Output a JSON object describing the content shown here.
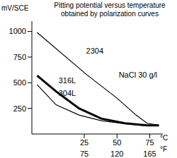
{
  "chart_data": {
    "type": "line",
    "title": "Pitting potential versus temperature",
    "subtitle": "obtained by polarization curves",
    "y_label": "mV/SCE",
    "x_label": "°C",
    "x2_label": "°F",
    "xlim": [
      -15,
      85
    ],
    "xticks": [
      25,
      50,
      75
    ],
    "x2ticks": [
      {
        "value": 25,
        "label": "75"
      },
      {
        "value": 50,
        "label": "120"
      },
      {
        "value": 75,
        "label": "165"
      }
    ],
    "ylim": [
      0,
      1100
    ],
    "yticks": [
      250,
      500,
      750,
      1000
    ],
    "grid": false,
    "annotations": [
      {
        "text": "NaCl 30 g/l",
        "x": 66,
        "y": 580
      }
    ],
    "series": [
      {
        "name": "2304",
        "color": "#000000",
        "line_style": "solid",
        "label_at": [
          33,
          810
        ],
        "x": [
          -11,
          26.7,
          50,
          64.5,
          73,
          82
        ],
        "values": [
          990,
          580,
          350,
          185,
          105,
          85
        ]
      },
      {
        "name": "316L",
        "color": "#000000",
        "line_style": "thick",
        "label_at": [
          12,
          520
        ],
        "x": [
          -11,
          3.5,
          21,
          38,
          56,
          73,
          82
        ],
        "values": [
          570,
          415,
          250,
          150,
          105,
          85,
          85
        ]
      },
      {
        "name": "304L",
        "color": "#000000",
        "line_style": "solid",
        "label_at": [
          12,
          395
        ],
        "x": [
          -11,
          3.5,
          21,
          38,
          56,
          73
        ],
        "values": [
          480,
          285,
          185,
          130,
          100,
          80
        ]
      }
    ]
  }
}
